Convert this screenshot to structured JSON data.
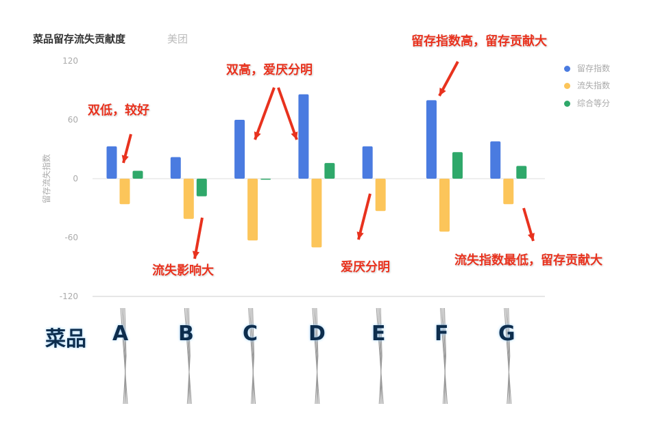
{
  "chart_data": {
    "type": "bar",
    "title": "菜品留存流失贡献度",
    "subtitle": "美团",
    "ylabel": "留存流失指数",
    "xlabel": "菜品",
    "categories": [
      "A",
      "B",
      "C",
      "D",
      "E",
      "F",
      "G"
    ],
    "ylim": [
      -120,
      120
    ],
    "yticks": [
      "120",
      "60",
      "0",
      "-60",
      "-120"
    ],
    "grid": false,
    "legend_position": "right",
    "series": [
      {
        "name": "留存指数",
        "color": "#4a7be0",
        "values": [
          33,
          22,
          60,
          86,
          33,
          80,
          38
        ]
      },
      {
        "name": "流失指数",
        "color": "#fcc55a",
        "values": [
          -26,
          -41,
          -63,
          -70,
          -33,
          -54,
          -26
        ]
      },
      {
        "name": "综合等分",
        "color": "#2fa86a",
        "values": [
          8,
          -18,
          -1,
          16,
          0,
          27,
          13
        ]
      }
    ],
    "annotations": [
      {
        "text": "双低，较好",
        "target": "A"
      },
      {
        "text": "流失影响大",
        "target": "B"
      },
      {
        "text": "双高，爱厌分明",
        "target": "C,D"
      },
      {
        "text": "爱厌分明",
        "target": "E"
      },
      {
        "text": "留存指数高，留存贡献大",
        "target": "F"
      },
      {
        "text": "流失指数最低，留存贡献大",
        "target": "G"
      }
    ]
  }
}
